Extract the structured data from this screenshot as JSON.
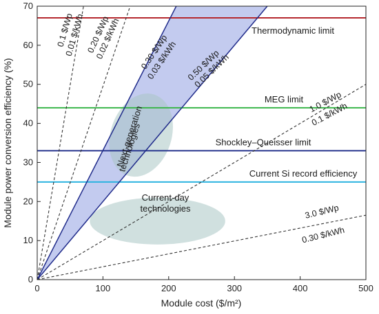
{
  "chart_data": {
    "type": "line",
    "xlabel": "Module cost ($/m²)",
    "ylabel": "Module power conversion efficiency (%)",
    "xlim": [
      0,
      500
    ],
    "ylim": [
      0,
      70
    ],
    "xticks": [
      "0",
      "100",
      "200",
      "300",
      "400",
      "500"
    ],
    "yticks": [
      "0",
      "10",
      "20",
      "30",
      "40",
      "50",
      "60",
      "70"
    ],
    "reference_lines": [
      {
        "label": "Thermodynamic limit",
        "y": 67,
        "color": "#b5282e"
      },
      {
        "label": "MEG limit",
        "y": 44,
        "color": "#3ab54a"
      },
      {
        "label": "Shockley–Queisser limit",
        "y": 33,
        "color": "#2b3990"
      },
      {
        "label": "Current Si record efficiency",
        "y": 25,
        "color": "#2bb3e0"
      }
    ],
    "cost_lines": [
      {
        "label": "0.1 $/Wp",
        "label2": "0.01 $/kWh",
        "slope": 0.994
      },
      {
        "label": "0.20 $/Wp",
        "label2": "0.02 $/kWh",
        "slope": 0.495
      },
      {
        "label": "0.30 $/Wp",
        "label2": "0.03 $/kWh",
        "slope": 0.331
      },
      {
        "label": "0.50 $/Wp",
        "label2": "0.05 $/kWh",
        "slope": 0.2
      },
      {
        "label": "1.0 $/Wp",
        "label2": "0.1 $/kWh",
        "slope": 0.1
      },
      {
        "label": "3.0 $/Wp",
        "label2": "0.30 $/kWh",
        "slope": 0.033
      }
    ],
    "shaded_band": {
      "between": [
        "0.30 $/Wp",
        "0.50 $/Wp"
      ],
      "color": "#b9c2ec"
    },
    "regions": [
      {
        "label": "Next-generation technologies",
        "cx": 158,
        "cy": 37,
        "rx": 62,
        "ry": 17,
        "rotate": -72
      },
      {
        "label": "Current-day technologies",
        "cx": 183,
        "cy": 15,
        "rx": 103,
        "ry": 6
      }
    ]
  }
}
